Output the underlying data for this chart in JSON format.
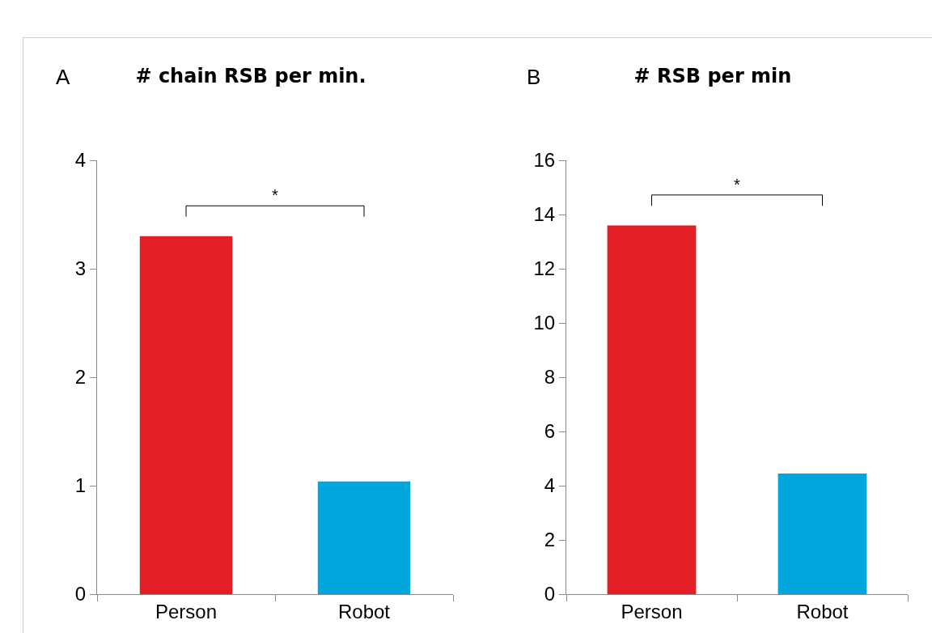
{
  "chart_data": [
    {
      "type": "bar",
      "title": "# chain RSB per min.",
      "categories": [
        "Person",
        "Robot"
      ],
      "values": [
        3.3,
        1.04
      ],
      "colors": [
        "#e31e24",
        "#00a6dc"
      ],
      "ylim": [
        0,
        4
      ],
      "yticks": [
        0,
        1,
        2,
        3,
        4
      ],
      "grid": false,
      "annotations": [
        "A",
        "*"
      ]
    },
    {
      "type": "bar",
      "title": "# RSB per min",
      "categories": [
        "Person",
        "Robot"
      ],
      "values": [
        13.6,
        4.45
      ],
      "colors": [
        "#e31e24",
        "#00a6dc"
      ],
      "ylim": [
        0,
        16
      ],
      "yticks": [
        0,
        2,
        4,
        6,
        8,
        10,
        12,
        14,
        16
      ],
      "grid": false,
      "annotations": [
        "B",
        "*"
      ]
    }
  ]
}
